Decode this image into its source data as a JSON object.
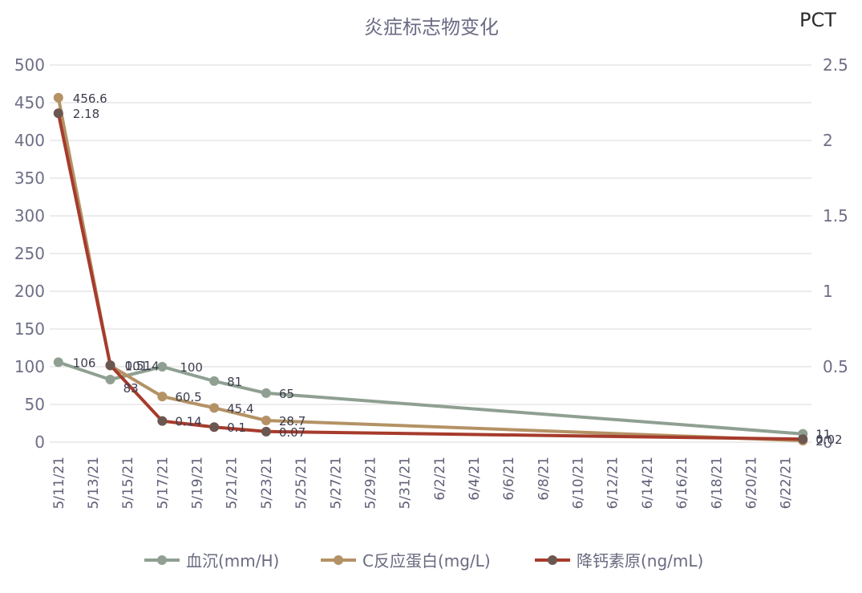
{
  "chart_data": {
    "type": "line",
    "title": "炎症标志物变化",
    "y2_title": "PCT",
    "x_ticks": [
      "5/11/21",
      "5/13/21",
      "5/15/21",
      "5/17/21",
      "5/19/21",
      "5/21/21",
      "5/23/21",
      "5/25/21",
      "5/27/21",
      "5/29/21",
      "5/31/21",
      "6/2/21",
      "6/4/21",
      "6/6/21",
      "6/8/21",
      "6/10/21",
      "6/12/21",
      "6/14/21",
      "6/16/21",
      "6/18/21",
      "6/20/21",
      "6/22/21"
    ],
    "y_ticks": [
      "0",
      "50",
      "100",
      "150",
      "200",
      "250",
      "300",
      "350",
      "400",
      "450",
      "500"
    ],
    "y2_ticks": [
      "0",
      "0.5",
      "1",
      "1.5",
      "2",
      "2.5"
    ],
    "ylim": [
      0,
      500
    ],
    "y2lim": [
      0,
      2.5
    ],
    "xlim": [
      "5/11/21",
      "6/23/21"
    ],
    "grid": true,
    "legend_position": "bottom",
    "series": [
      {
        "name": "血沉(mm/H)",
        "axis": "left",
        "color": "#8fa092",
        "x": [
          "5/11/21",
          "5/14/21",
          "5/17/21",
          "5/20/21",
          "5/23/21",
          "6/23/21"
        ],
        "y": [
          106,
          83,
          100,
          81,
          65,
          11
        ],
        "labels": [
          "106",
          "83",
          "100",
          "81",
          "65",
          "11"
        ]
      },
      {
        "name": "C反应蛋白(mg/L)",
        "axis": "left",
        "color": "#b49265",
        "x": [
          "5/11/21",
          "5/14/21",
          "5/17/21",
          "5/20/21",
          "5/23/21",
          "6/23/21"
        ],
        "y": [
          456.6,
          101.4,
          60.5,
          45.4,
          28.7,
          2
        ],
        "labels": [
          "456.6",
          "101.4",
          "60.5",
          "45.4",
          "28.7",
          "2"
        ]
      },
      {
        "name": "降钙素原(ng/mL)",
        "axis": "right",
        "color": "#a63b2c",
        "marker_color": "#6b5650",
        "x": [
          "5/11/21",
          "5/14/21",
          "5/17/21",
          "5/20/21",
          "5/23/21",
          "6/23/21"
        ],
        "y": [
          2.18,
          0.51,
          0.14,
          0.1,
          0.07,
          0.02
        ],
        "labels": [
          "2.18",
          "0.51",
          "0.14",
          "0.1",
          "0.07",
          "0.02"
        ]
      }
    ]
  }
}
